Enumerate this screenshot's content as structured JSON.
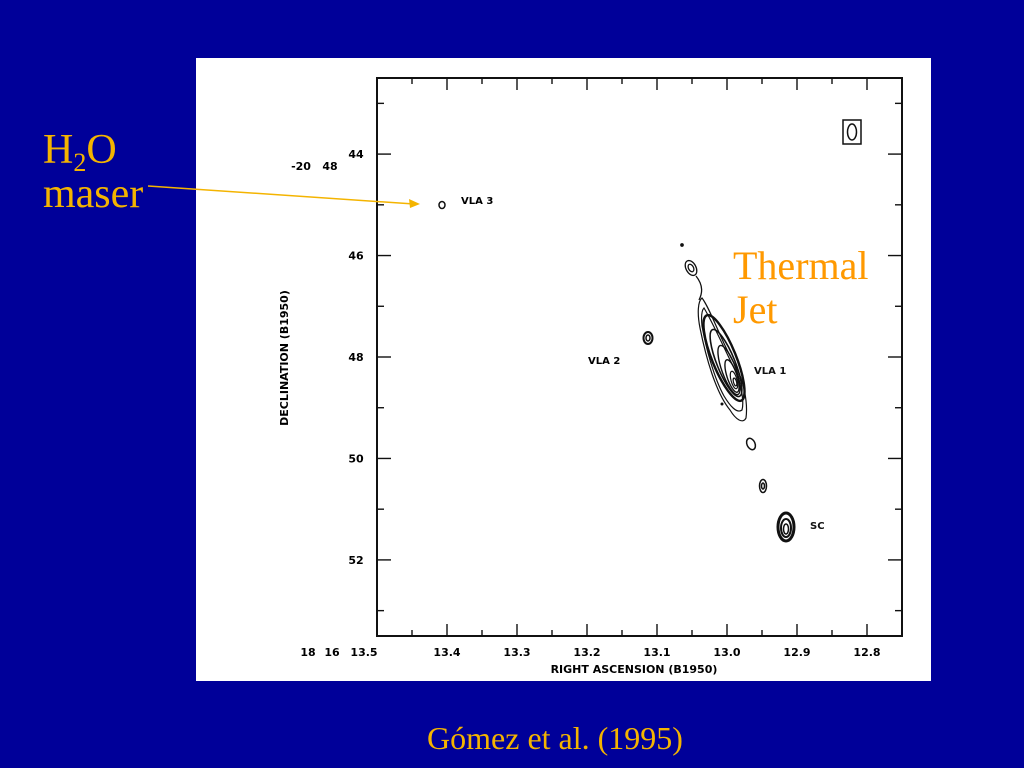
{
  "slide": {
    "maser_label": {
      "main": "H",
      "sub": "2",
      "rest": "O",
      "line2": "maser"
    },
    "thermal_jet_label": {
      "line1": "Thermal",
      "line2": "Jet"
    },
    "citation": "Gómez et al. (1995)",
    "colors": {
      "background": "#000099",
      "label": "#F4B400",
      "thermal": "#FF9900",
      "arrow": "#F4B400"
    }
  },
  "chart_data": {
    "type": "contour",
    "xlabel": "RIGHT ASCENSION (B1950)",
    "ylabel": "DECLINATION (B1950)",
    "x_ticks": [
      "13.4",
      "13.3",
      "13.2",
      "13.1",
      "13.0",
      "12.9",
      "12.8"
    ],
    "x_prefix": [
      "18",
      "16",
      "13.5"
    ],
    "y_ticks": [
      "44",
      "46",
      "48",
      "50",
      "52"
    ],
    "y_prefix": [
      "-20",
      "48"
    ],
    "xlim": [
      13.5,
      12.75
    ],
    "ylim": [
      42.5,
      53.5
    ],
    "grid": false,
    "beam_marker": "top-right",
    "sources": [
      {
        "name": "VLA 3",
        "ra": 13.39,
        "dec": 44.8,
        "note": "H2O maser"
      },
      {
        "name": "VLA 2",
        "ra": 13.107,
        "dec": 47.5
      },
      {
        "name": "VLA 1",
        "ra": 12.995,
        "dec": 48.2,
        "note": "Thermal Jet"
      },
      {
        "name": "SC",
        "ra": 12.905,
        "dec": 51.3
      }
    ]
  }
}
